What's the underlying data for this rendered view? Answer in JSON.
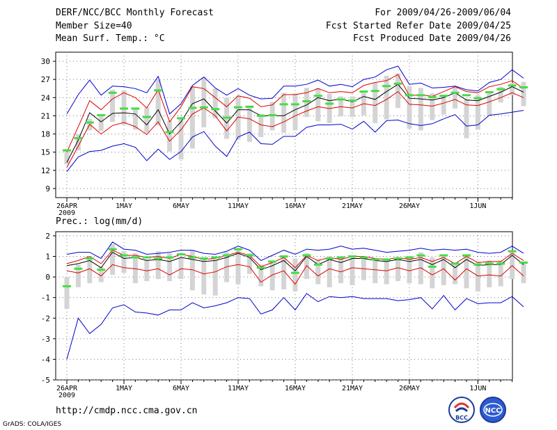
{
  "header": {
    "title": "DERF/NCC/BCC Monthly Forecast",
    "member_size": "Member Size=40",
    "variable1": "Mean Surf. Temp.: °C",
    "period": "For 2009/04/26-2009/06/04",
    "started": "Fcst Started Refer Date 2009/04/25",
    "produced": "Fcst Produced Date 2009/04/26"
  },
  "footer": {
    "url": "http://cmdp.ncc.cma.gov.cn",
    "grads": "GrADS: COLA/IGES",
    "logo_bcc": "BCC",
    "logo_ncc": "NCC"
  },
  "colors": {
    "mean": "#000000",
    "envelope": "#0000cc",
    "spread": "#dd0000",
    "box": "#d4d4d4",
    "marker": "#44dd44",
    "grid": "#777777"
  },
  "chart_data": [
    {
      "type": "ensemble-box",
      "title": "Mean Surf. Temp.: °C",
      "ylabel": "°C",
      "ylim": [
        7.5,
        31.5
      ],
      "yticks": [
        9,
        12,
        15,
        18,
        21,
        24,
        27,
        30
      ],
      "xlim": [
        0,
        39
      ],
      "xticks": [
        0,
        5,
        10,
        15,
        20,
        25,
        30,
        36
      ],
      "xticklabels": [
        "26APR",
        "1MAY",
        "6MAY",
        "11MAY",
        "16MAY",
        "21MAY",
        "26MAY",
        "1JUN"
      ],
      "xsublabel": "2009",
      "series": [
        {
          "name": "ensemble mean",
          "values": [
            13.3,
            17,
            21.5,
            20,
            21.4,
            21.5,
            21.3,
            19.5,
            22,
            18,
            20,
            23,
            23.8,
            21.8,
            19.8,
            22,
            22,
            21,
            21,
            21,
            22,
            22.8,
            24,
            23.5,
            23.8,
            23.3,
            24.2,
            23.7,
            25,
            26.2,
            23.9,
            23.8,
            23.6,
            24,
            24.8,
            23.6,
            23.5,
            24.2,
            24.9,
            25.8,
            24.9
          ]
        },
        {
          "name": "upper spread",
          "values": [
            15,
            19.2,
            23.5,
            22,
            23.8,
            24.8,
            24,
            22.3,
            25.3,
            20,
            22.5,
            25.8,
            25.5,
            24,
            22.5,
            24.3,
            23.9,
            22.5,
            22.8,
            24.5,
            24.5,
            24.8,
            25.5,
            24.8,
            25,
            24.8,
            26,
            26.5,
            26.8,
            27.8,
            24.3,
            24.5,
            24.2,
            25,
            25.8,
            25,
            24.8,
            25.8,
            26.2,
            26.8,
            25.5
          ]
        },
        {
          "name": "lower spread",
          "values": [
            12.5,
            16,
            19.6,
            18,
            19.4,
            19.9,
            19.2,
            17.9,
            20,
            16.8,
            18.7,
            21.3,
            22.3,
            21,
            18.5,
            20.8,
            20.5,
            19.5,
            19.2,
            20,
            21,
            21.8,
            22.5,
            22.2,
            22.5,
            22.3,
            23,
            22.7,
            23.7,
            25,
            22.9,
            22.8,
            22.6,
            23.1,
            23.7,
            22.8,
            22.7,
            23.3,
            24,
            24.8,
            24
          ]
        },
        {
          "name": "max member",
          "values": [
            21.3,
            24.5,
            26.9,
            24.4,
            25.9,
            25.8,
            25.5,
            24.8,
            27.5,
            21.3,
            23,
            26,
            27.4,
            25.6,
            24.4,
            25.5,
            24.4,
            23.8,
            23.9,
            25.9,
            25.9,
            26.2,
            26.9,
            25.9,
            26.2,
            25.8,
            27,
            27.4,
            28.6,
            29.2,
            26.2,
            26.4,
            25.6,
            25.7,
            25.9,
            25.3,
            25.1,
            26.5,
            27,
            28.6,
            27.2
          ]
        },
        {
          "name": "min member",
          "values": [
            11.8,
            14.2,
            15.1,
            15.3,
            16,
            16.4,
            15.8,
            13.6,
            15.5,
            13.8,
            15.1,
            17.5,
            18.4,
            16,
            14.3,
            17.5,
            18.3,
            16.4,
            16.3,
            17.6,
            17.6,
            19.1,
            19.5,
            19.5,
            19.6,
            18.8,
            20.1,
            18.3,
            20.2,
            20.3,
            19.7,
            19.4,
            19.7,
            20.5,
            21.2,
            19.3,
            19.5,
            21.1,
            21.3,
            21.6,
            21.9
          ]
        },
        {
          "name": "box high",
          "values": [
            15.5,
            18,
            20.5,
            21.2,
            25.3,
            25.2,
            22.3,
            22.4,
            27,
            20.2,
            20.7,
            25.8,
            27.3,
            25.5,
            24,
            24.3,
            22.7,
            21.3,
            23.3,
            24.8,
            24.7,
            25.6,
            25.6,
            24.6,
            24.2,
            24.2,
            24.8,
            26.5,
            27.6,
            28,
            25.9,
            25.6,
            24.7,
            24.4,
            25.9,
            23.8,
            24.4,
            24.9,
            25.8,
            26.4,
            26.6
          ]
        },
        {
          "name": "box low",
          "values": [
            13,
            15.3,
            18.6,
            18.5,
            20,
            19.5,
            18.7,
            18.2,
            19.4,
            15.1,
            13.8,
            15.6,
            19.1,
            20.6,
            17.2,
            17.1,
            16.7,
            17.5,
            18.6,
            18.2,
            18.6,
            20.8,
            20.1,
            19.8,
            20.9,
            20.8,
            21.1,
            19.8,
            20.4,
            22.3,
            18.9,
            18.6,
            20.3,
            21.2,
            22.2,
            17.3,
            18.7,
            21.1,
            23.2,
            24.4,
            22.6
          ]
        },
        {
          "name": "observed",
          "values": [
            15.3,
            17.3,
            19.9,
            21.1,
            24.8,
            22.2,
            22.2,
            20.8,
            25.2,
            18.3,
            20.6,
            22.3,
            22.4,
            22.1,
            20.7,
            22.4,
            22.5,
            21,
            21.1,
            22.9,
            22.9,
            23.4,
            24.3,
            23,
            23.7,
            23.5,
            25,
            25.1,
            25.9,
            26.3,
            24.4,
            24.4,
            24.1,
            24.3,
            24.8,
            24.4,
            23.9,
            24.9,
            25.4,
            26,
            25.7
          ]
        }
      ]
    },
    {
      "type": "ensemble-box",
      "title": "Prec.: log(mm/d)",
      "ylabel": "log(mm/d)",
      "ylim": [
        -5,
        2.2
      ],
      "yticks": [
        -5,
        -4,
        -3,
        -2,
        -1,
        0,
        1,
        2
      ],
      "xlim": [
        0,
        39
      ],
      "xticks": [
        0,
        5,
        10,
        15,
        20,
        25,
        30,
        36
      ],
      "xticklabels": [
        "26APR",
        "1MAY",
        "6MAY",
        "11MAY",
        "16MAY",
        "21MAY",
        "26MAY",
        "1JUN"
      ],
      "xsublabel": "2009",
      "series": [
        {
          "name": "ensemble mean",
          "values": [
            0.55,
            0.65,
            0.8,
            0.45,
            1.2,
            0.9,
            0.95,
            0.8,
            0.85,
            0.75,
            0.95,
            0.85,
            0.75,
            0.8,
            0.95,
            1.15,
            0.95,
            0.35,
            0.55,
            0.8,
            0.3,
            1.0,
            0.6,
            0.85,
            0.7,
            0.9,
            0.9,
            0.8,
            0.75,
            0.85,
            0.75,
            0.85,
            0.6,
            0.85,
            0.45,
            0.85,
            0.55,
            0.6,
            0.6,
            1.05,
            0.6
          ]
        },
        {
          "name": "upper spread",
          "values": [
            0.65,
            0.8,
            1.0,
            0.65,
            1.3,
            1.05,
            1.05,
            0.95,
            1.0,
            0.9,
            1.1,
            1.0,
            0.85,
            0.9,
            1.05,
            1.2,
            1.05,
            0.5,
            0.7,
            0.95,
            0.45,
            1.05,
            0.8,
            0.95,
            0.85,
            1.0,
            1.0,
            0.9,
            0.85,
            0.95,
            0.85,
            0.95,
            0.75,
            0.95,
            0.65,
            1.0,
            0.7,
            0.75,
            0.75,
            1.15,
            0.8
          ]
        },
        {
          "name": "lower spread",
          "values": [
            0.3,
            0.2,
            0.4,
            0.05,
            0.6,
            0.45,
            0.4,
            0.3,
            0.4,
            0.1,
            0.4,
            0.35,
            0.15,
            0.25,
            0.5,
            0.6,
            0.5,
            -0.25,
            0.1,
            0.3,
            -0.35,
            0.55,
            0.05,
            0.4,
            0.25,
            0.45,
            0.4,
            0.35,
            0.3,
            0.45,
            0.3,
            0.45,
            0.1,
            0.4,
            -0.15,
            0.4,
            0.05,
            0.1,
            0.05,
            0.55,
            0.05
          ]
        },
        {
          "name": "max member",
          "values": [
            1.1,
            1.2,
            1.2,
            0.9,
            1.7,
            1.35,
            1.3,
            1.1,
            1.15,
            1.2,
            1.3,
            1.3,
            1.15,
            1.1,
            1.25,
            1.5,
            1.3,
            0.8,
            1.05,
            1.3,
            1.1,
            1.35,
            1.3,
            1.35,
            1.5,
            1.35,
            1.4,
            1.3,
            1.2,
            1.25,
            1.3,
            1.4,
            1.3,
            1.35,
            1.3,
            1.35,
            1.2,
            1.15,
            1.2,
            1.5,
            1.15
          ]
        },
        {
          "name": "min member",
          "values": [
            -4.0,
            -2.0,
            -2.75,
            -2.3,
            -1.5,
            -1.35,
            -1.7,
            -1.75,
            -1.85,
            -1.6,
            -1.6,
            -1.25,
            -1.5,
            -1.4,
            -1.25,
            -1.0,
            -1.05,
            -1.8,
            -1.6,
            -1.0,
            -1.6,
            -0.8,
            -1.2,
            -0.95,
            -1.0,
            -0.95,
            -1.05,
            -1.05,
            -1.05,
            -1.15,
            -1.1,
            -1.0,
            -1.55,
            -0.9,
            -1.6,
            -1.05,
            -1.3,
            -1.25,
            -1.25,
            -0.95,
            -1.45
          ]
        },
        {
          "name": "box high",
          "values": [
            0,
            0.6,
            0.9,
            0.5,
            1.6,
            1.25,
            1.15,
            0.85,
            1.25,
            1.15,
            0.95,
            1.3,
            0.85,
            0.85,
            1.2,
            1.4,
            1.15,
            0.6,
            0.75,
            0.95,
            0.9,
            1.15,
            0.85,
            1.0,
            1.0,
            1.0,
            1.0,
            0.85,
            0.9,
            0.95,
            0.95,
            1.2,
            0.95,
            1.0,
            0.7,
            1.05,
            0.75,
            0.8,
            0.8,
            1.2,
            0.7
          ]
        },
        {
          "name": "box low",
          "values": [
            -1.55,
            -0.5,
            -0.3,
            -0.25,
            0.1,
            0.2,
            -0.3,
            -0.2,
            -0.1,
            -0.2,
            -0.1,
            -0.65,
            -0.85,
            -0.9,
            -0.25,
            -0.35,
            0.15,
            -0.45,
            -0.65,
            -0.6,
            -0.7,
            -0.1,
            -0.35,
            -0.5,
            -0.3,
            -0.4,
            -0.15,
            -0.3,
            -0.35,
            -0.2,
            -0.3,
            -0.35,
            -0.55,
            -0.4,
            -0.35,
            -0.55,
            -0.7,
            -0.5,
            -0.45,
            -0.1,
            -0.3
          ]
        },
        {
          "name": "observed",
          "values": [
            -0.45,
            0.4,
            0.9,
            0.35,
            1.35,
            1.05,
            0.95,
            0.95,
            0.9,
            0.95,
            1.1,
            0.95,
            0.9,
            0.95,
            1.05,
            1.35,
            1.05,
            0.45,
            0.75,
            1.0,
            0.2,
            1.05,
            0.6,
            0.9,
            0.95,
            1.0,
            0.95,
            0.85,
            0.85,
            0.9,
            0.95,
            1.05,
            0.5,
            1.05,
            0.65,
            1.05,
            0.6,
            0.65,
            0.65,
            1.25,
            0.7
          ]
        }
      ]
    }
  ]
}
